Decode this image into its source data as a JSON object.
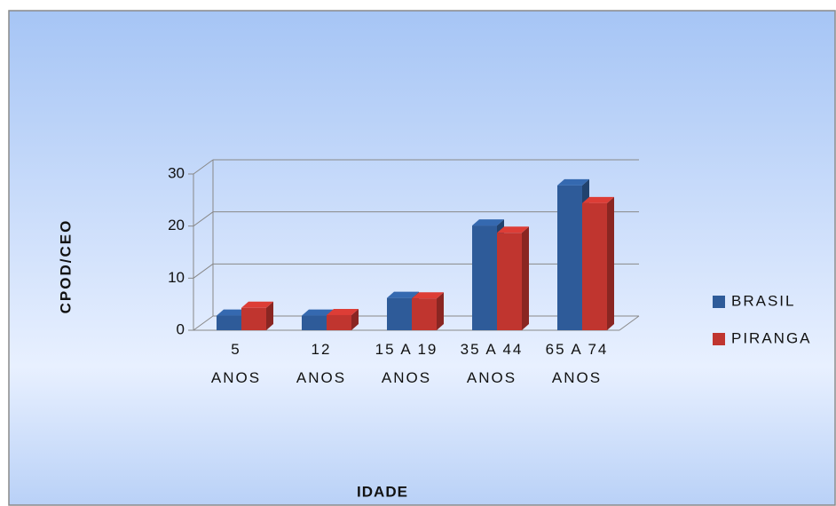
{
  "chart_data": {
    "type": "bar3d",
    "x_label": "IDADE",
    "y_label": "CPOD/CEO",
    "categories": [
      "5 ANOS",
      "12 ANOS",
      "15 A 19 ANOS",
      "35 A 44 ANOS",
      "65 A 74 ANOS"
    ],
    "series": [
      {
        "name": "BRASIL",
        "color": "#2e5b99",
        "values": [
          2.8,
          2.8,
          6.2,
          20.1,
          27.8
        ]
      },
      {
        "name": "PIRANGA",
        "color": "#c0352f",
        "values": [
          4.3,
          2.9,
          6.1,
          18.7,
          24.4
        ]
      }
    ],
    "ylim": [
      0,
      30
    ],
    "yticks": [
      0,
      10,
      20,
      30
    ],
    "grid": true,
    "legend": "right"
  }
}
